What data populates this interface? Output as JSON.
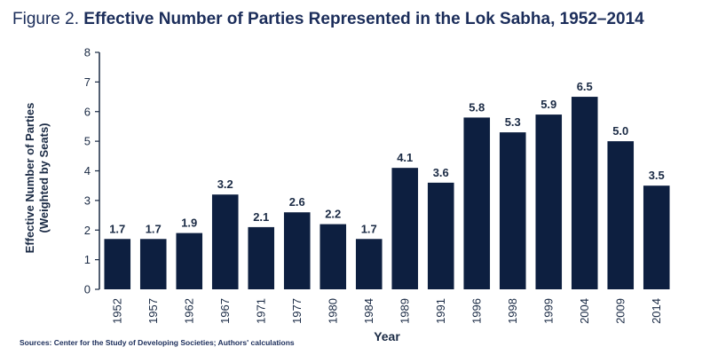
{
  "figure": {
    "label": "Figure 2.",
    "title": "Effective Number of Parties Represented in the Lok Sabha, 1952–2014",
    "source": "Sources: Center for the Study of Developing Societies; Authors' calculations"
  },
  "colors": {
    "bar": "#0d1f40",
    "axis": "#1a2a44"
  },
  "chart_data": {
    "type": "bar",
    "categories": [
      "1952",
      "1957",
      "1962",
      "1967",
      "1971",
      "1977",
      "1980",
      "1984",
      "1989",
      "1991",
      "1996",
      "1998",
      "1999",
      "2004",
      "2009",
      "2014"
    ],
    "values": [
      1.7,
      1.7,
      1.9,
      3.2,
      2.1,
      2.6,
      2.2,
      1.7,
      4.1,
      3.6,
      5.8,
      5.3,
      5.9,
      6.5,
      5.0,
      3.5
    ],
    "value_labels": [
      "1.7",
      "1.7",
      "1.9",
      "3.2",
      "2.1",
      "2.6",
      "2.2",
      "1.7",
      "4.1",
      "3.6",
      "5.8",
      "5.3",
      "5.9",
      "6.5",
      "5.0",
      "3.5"
    ],
    "xlabel": "Year",
    "ylabel_lines": [
      "Effective Number of Parties",
      "(Weighted by Seats)"
    ],
    "ylim": [
      0,
      8
    ],
    "yticks": [
      0,
      1,
      2,
      3,
      4,
      5,
      6,
      7,
      8
    ],
    "grid": false,
    "legend": "none"
  }
}
